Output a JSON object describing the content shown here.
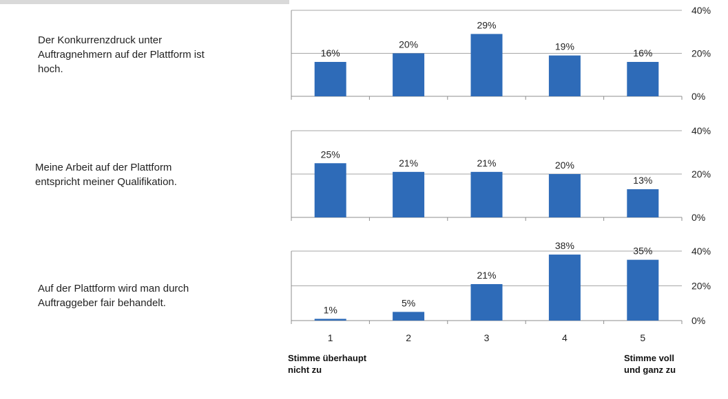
{
  "chart_data": [
    {
      "type": "bar",
      "title": "Der Konkurrenzdruck unter Auftragnehmern auf der Plattform ist hoch.",
      "categories": [
        "1",
        "2",
        "3",
        "4",
        "5"
      ],
      "values": [
        16,
        20,
        29,
        19,
        16
      ],
      "value_labels": [
        "16%",
        "20%",
        "29%",
        "19%",
        "16%"
      ],
      "ylim": [
        0,
        40
      ],
      "yticks": [
        "0%",
        "20%",
        "40%"
      ],
      "bar_color": "#2e6bb8",
      "grid": true
    },
    {
      "type": "bar",
      "title": "Meine Arbeit auf der Plattform entspricht meiner Qualifikation.",
      "categories": [
        "1",
        "2",
        "3",
        "4",
        "5"
      ],
      "values": [
        25,
        21,
        21,
        20,
        13
      ],
      "value_labels": [
        "25%",
        "21%",
        "21%",
        "20%",
        "13%"
      ],
      "ylim": [
        0,
        40
      ],
      "yticks": [
        "0%",
        "20%",
        "40%"
      ],
      "bar_color": "#2e6bb8",
      "grid": true
    },
    {
      "type": "bar",
      "title": "Auf der Plattform wird man durch Auftraggeber fair behandelt.",
      "categories": [
        "1",
        "2",
        "3",
        "4",
        "5"
      ],
      "values": [
        1,
        5,
        21,
        38,
        35
      ],
      "value_labels": [
        "1%",
        "5%",
        "21%",
        "38%",
        "35%"
      ],
      "ylim": [
        0,
        40
      ],
      "yticks": [
        "0%",
        "20%",
        "40%"
      ],
      "bar_color": "#2e6bb8",
      "grid": true
    }
  ],
  "questions": [
    {
      "line1": "Der Konkurrenzdruck unter",
      "line2": "Auftragnehmern auf der Plattform ist",
      "line3": "hoch."
    },
    {
      "line1": "Meine Arbeit auf der Plattform",
      "line2": "entspricht meiner Qualifikation."
    },
    {
      "line1": "Auf der Plattform wird man durch",
      "line2": "Auftraggeber fair behandelt."
    }
  ],
  "x_axis_labels": [
    "1",
    "2",
    "3",
    "4",
    "5"
  ],
  "scale_left": {
    "line1": "Stimme überhaupt",
    "line2": "nicht zu"
  },
  "scale_right": {
    "line1": "Stimme voll",
    "line2": "und ganz zu"
  }
}
